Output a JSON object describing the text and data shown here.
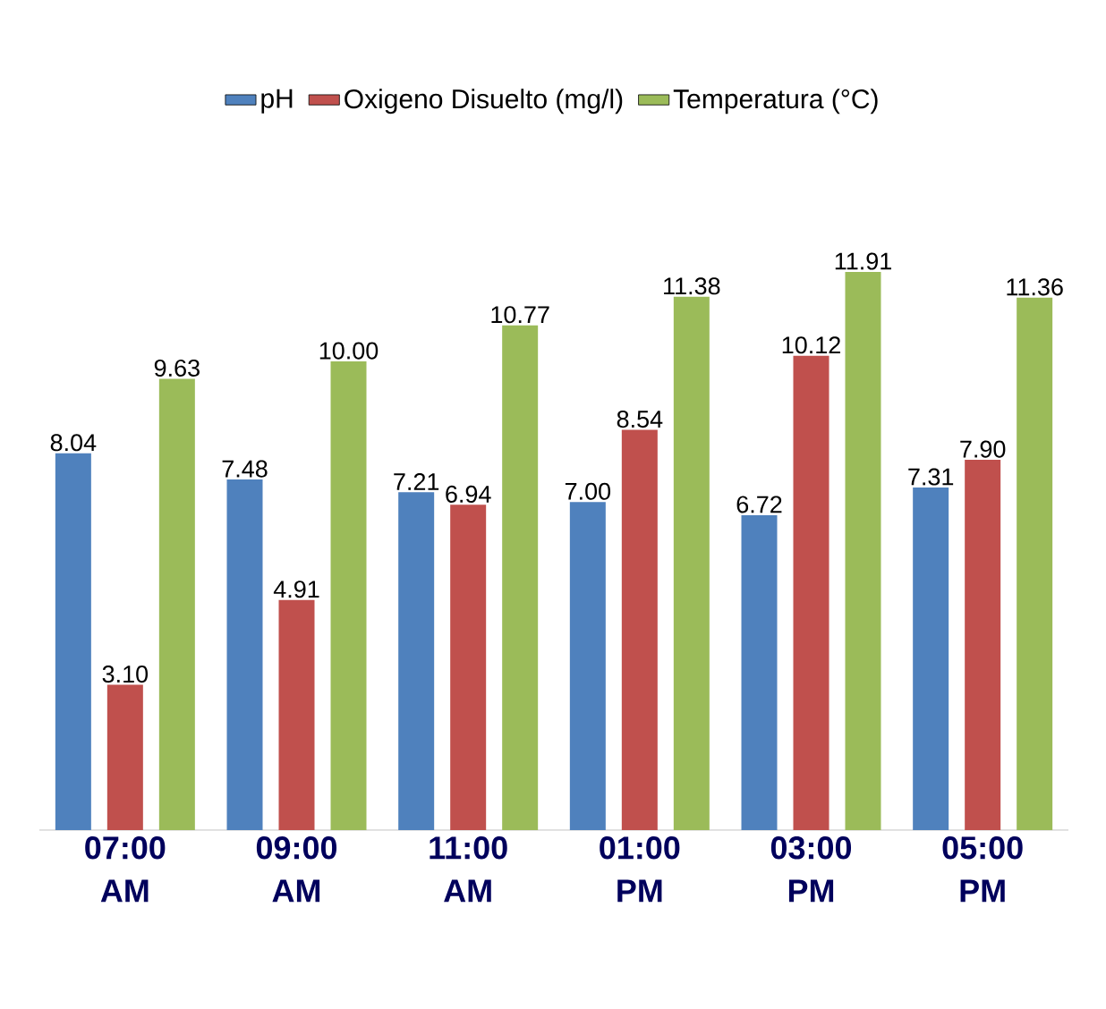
{
  "chart_data": {
    "type": "bar",
    "categories": [
      "07:00 AM",
      "09:00 AM",
      "11:00 AM",
      "01:00 PM",
      "03:00 PM",
      "05:00 PM"
    ],
    "series": [
      {
        "name": "pH",
        "color": "#4f81bd",
        "values": [
          8.04,
          7.48,
          7.21,
          7.0,
          6.72,
          7.31
        ],
        "value_labels": [
          "8.04",
          "7.48",
          "7.21",
          "7.00",
          "6.72",
          "7.31"
        ]
      },
      {
        "name": "Oxigeno Disuelto (mg/l)",
        "color": "#c0504d",
        "values": [
          3.1,
          4.91,
          6.94,
          8.54,
          10.12,
          7.9
        ],
        "value_labels": [
          "3.10",
          "4.91",
          "6.94",
          "8.54",
          "10.12",
          "7.90"
        ]
      },
      {
        "name": "Temperatura (°C)",
        "color": "#9bbb59",
        "values": [
          9.63,
          10.0,
          10.77,
          11.38,
          11.91,
          11.36
        ],
        "value_labels": [
          "9.63",
          "10.00",
          "10.77",
          "11.38",
          "11.91",
          "11.36"
        ]
      }
    ],
    "legend": "top"
  }
}
